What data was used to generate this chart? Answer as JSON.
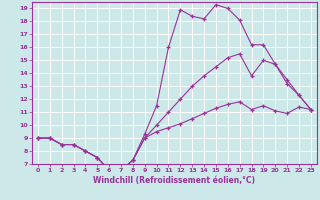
{
  "background_color": "#cce8e8",
  "grid_color": "#ffffff",
  "line_color": "#993399",
  "marker": "+",
  "xlabel": "Windchill (Refroidissement éolien,°C)",
  "xlim": [
    -0.5,
    23.5
  ],
  "ylim": [
    7,
    19.5
  ],
  "xticks": [
    0,
    1,
    2,
    3,
    4,
    5,
    6,
    7,
    8,
    9,
    10,
    11,
    12,
    13,
    14,
    15,
    16,
    17,
    18,
    19,
    20,
    21,
    22,
    23
  ],
  "yticks": [
    7,
    8,
    9,
    10,
    11,
    12,
    13,
    14,
    15,
    16,
    17,
    18,
    19
  ],
  "series": [
    {
      "x": [
        0,
        1,
        2,
        3,
        4,
        5,
        6,
        7,
        8,
        9,
        10,
        11,
        12,
        13,
        14,
        15,
        16,
        17,
        18,
        19,
        20,
        21,
        22,
        23
      ],
      "y": [
        9,
        9,
        8.5,
        8.5,
        8,
        7.5,
        6.5,
        6.5,
        7.3,
        9.3,
        11.5,
        16,
        18.9,
        18.4,
        18.2,
        19.3,
        19.0,
        18.1,
        16.2,
        16.2,
        14.7,
        13.2,
        12.3,
        11.2
      ]
    },
    {
      "x": [
        0,
        1,
        2,
        3,
        4,
        5,
        6,
        7,
        8,
        9,
        10,
        11,
        12,
        13,
        14,
        15,
        16,
        17,
        18,
        19,
        20,
        21,
        22,
        23
      ],
      "y": [
        9,
        9,
        8.5,
        8.5,
        8,
        7.5,
        6.5,
        6.5,
        7.3,
        9.0,
        10.0,
        11.0,
        12.0,
        13.0,
        13.8,
        14.5,
        15.2,
        15.5,
        13.8,
        15.0,
        14.7,
        13.5,
        12.3,
        11.2
      ]
    },
    {
      "x": [
        0,
        1,
        2,
        3,
        4,
        5,
        6,
        7,
        8,
        9,
        10,
        11,
        12,
        13,
        14,
        15,
        16,
        17,
        18,
        19,
        20,
        21,
        22,
        23
      ],
      "y": [
        9,
        9,
        8.5,
        8.5,
        8,
        7.5,
        6.5,
        6.5,
        7.3,
        9.0,
        9.5,
        9.8,
        10.1,
        10.5,
        10.9,
        11.3,
        11.6,
        11.8,
        11.2,
        11.5,
        11.1,
        10.9,
        11.4,
        11.2
      ]
    }
  ]
}
